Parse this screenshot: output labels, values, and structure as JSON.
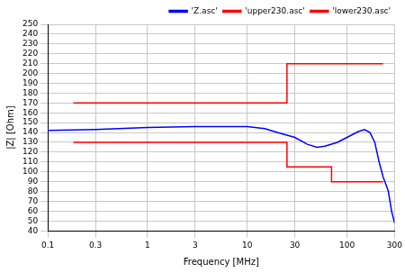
{
  "chart_data": {
    "type": "line",
    "x_label": "Frequency [MHz]",
    "y_label": "|Z| [Ohm]",
    "log": "x",
    "xlim": [
      0.1,
      300
    ],
    "xticks": [
      0.1,
      0.3,
      1,
      3,
      10,
      30,
      100,
      300
    ],
    "ylim": [
      40,
      250
    ],
    "yticks": [
      40,
      50,
      60,
      70,
      80,
      90,
      100,
      110,
      120,
      130,
      140,
      150,
      160,
      170,
      180,
      190,
      200,
      210,
      220,
      230,
      240,
      250
    ],
    "grid": true,
    "legend": "upper right",
    "series": [
      {
        "name": "'Z.asc'",
        "color": "#0000ff",
        "x": [
          0.1,
          0.3,
          1,
          3,
          10,
          15,
          20,
          30,
          40,
          50,
          60,
          80,
          100,
          130,
          150,
          170,
          190,
          210,
          230,
          250,
          260,
          280,
          300
        ],
        "values": [
          142,
          143,
          145,
          146,
          146,
          144,
          140,
          135,
          128,
          125,
          126,
          130,
          135,
          141,
          143,
          140,
          130,
          110,
          95,
          85,
          80,
          60,
          48
        ]
      },
      {
        "name": "'upper230.asc'",
        "color": "#ff0000",
        "x": [
          0.18,
          25,
          25,
          230
        ],
        "values": [
          170,
          170,
          210,
          210
        ]
      },
      {
        "name": "'lower230.asc'",
        "color": "#ff0000",
        "x": [
          0.18,
          25,
          25,
          70,
          70,
          230
        ],
        "values": [
          130,
          130,
          105,
          105,
          90,
          90
        ]
      }
    ]
  }
}
